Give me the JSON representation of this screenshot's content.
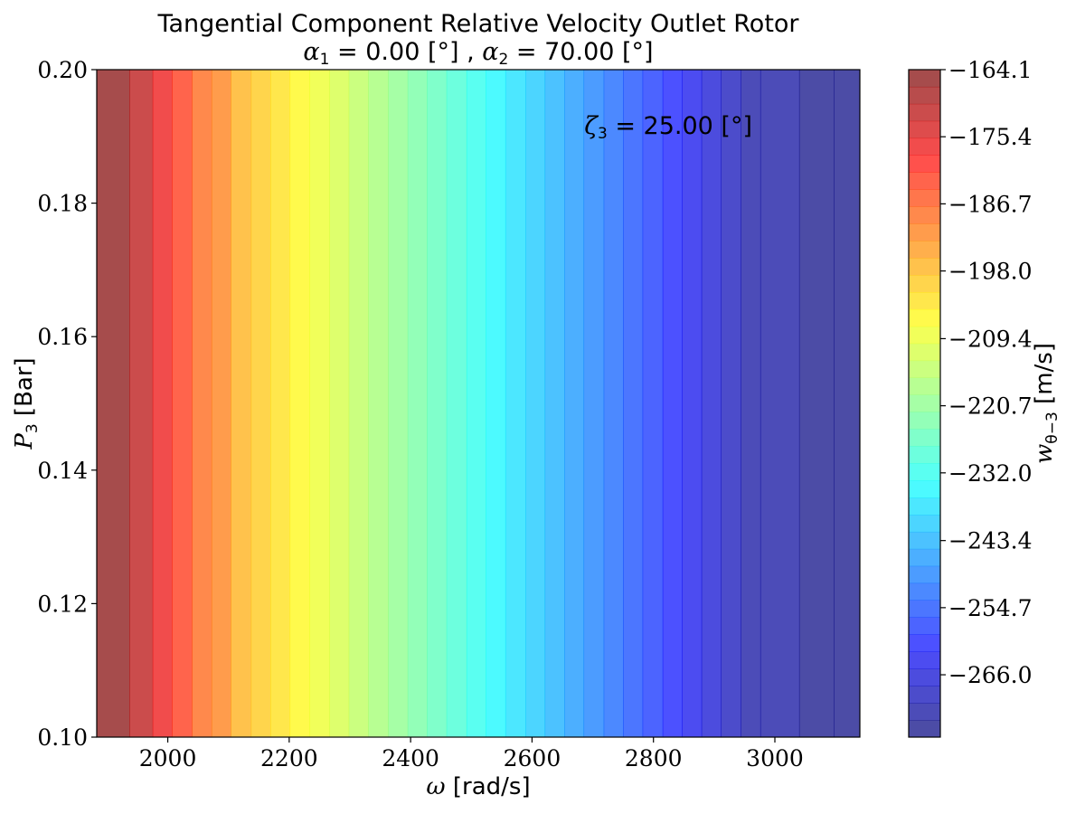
{
  "chart_data": {
    "type": "heatmap",
    "subtype": "filled-contour",
    "title": "Tangential Component Relative Velocity Outlet Rotor",
    "subtitle": {
      "alpha1_symbol": "α",
      "alpha1_sub": "1",
      "alpha1_text": " = 0.00 [°] , ",
      "alpha2_symbol": "α",
      "alpha2_sub": "2",
      "alpha2_text": " = 70.00 [°]"
    },
    "xlabel": {
      "symbol": "ω",
      "text": " [rad/s]"
    },
    "ylabel": {
      "symbol": "P",
      "sub": "3",
      "text": " [Bar]"
    },
    "colorbar_label": {
      "symbol": "w",
      "sub": "θ−3",
      "text": " [m/s]"
    },
    "annotation": {
      "symbol": "ζ",
      "sub": "3",
      "text": " = 25.00 [°]"
    },
    "xlim": [
      1883,
      3140
    ],
    "ylim": [
      0.1,
      0.2
    ],
    "xticks": [
      2000,
      2200,
      2400,
      2600,
      2800,
      3000
    ],
    "yticks": [
      "0.10",
      "0.12",
      "0.14",
      "0.16",
      "0.18",
      "0.20"
    ],
    "colorbar_ticks": [
      "−164.1",
      "−175.4",
      "−186.7",
      "−198.0",
      "−209.4",
      "−220.7",
      "−232.0",
      "−243.4",
      "−254.7",
      "−266.0"
    ],
    "colorbar_range": [
      -276.5,
      -164.1
    ],
    "colorbar_levels": 39,
    "colormap": "jet",
    "alpha": 0.7,
    "bands": [
      {
        "x0": 1883,
        "x1": 1937,
        "level": 0
      },
      {
        "x0": 1937,
        "x1": 1975,
        "level": 2
      },
      {
        "x0": 1975,
        "x1": 2007,
        "level": 4
      },
      {
        "x0": 2007,
        "x1": 2040,
        "level": 6
      },
      {
        "x0": 2040,
        "x1": 2072,
        "level": 8
      },
      {
        "x0": 2072,
        "x1": 2104,
        "level": 9
      },
      {
        "x0": 2104,
        "x1": 2137,
        "level": 11
      },
      {
        "x0": 2137,
        "x1": 2169,
        "level": 12
      },
      {
        "x0": 2169,
        "x1": 2201,
        "level": 13
      },
      {
        "x0": 2201,
        "x1": 2233,
        "level": 14
      },
      {
        "x0": 2233,
        "x1": 2266,
        "level": 15
      },
      {
        "x0": 2266,
        "x1": 2298,
        "level": 16
      },
      {
        "x0": 2298,
        "x1": 2330,
        "level": 17
      },
      {
        "x0": 2330,
        "x1": 2363,
        "level": 18
      },
      {
        "x0": 2363,
        "x1": 2395,
        "level": 19
      },
      {
        "x0": 2395,
        "x1": 2427,
        "level": 20
      },
      {
        "x0": 2427,
        "x1": 2459,
        "level": 21
      },
      {
        "x0": 2459,
        "x1": 2492,
        "level": 22
      },
      {
        "x0": 2492,
        "x1": 2524,
        "level": 23
      },
      {
        "x0": 2524,
        "x1": 2556,
        "level": 24
      },
      {
        "x0": 2556,
        "x1": 2589,
        "level": 25
      },
      {
        "x0": 2589,
        "x1": 2621,
        "level": 26
      },
      {
        "x0": 2621,
        "x1": 2653,
        "level": 27
      },
      {
        "x0": 2653,
        "x1": 2685,
        "level": 28
      },
      {
        "x0": 2685,
        "x1": 2718,
        "level": 29
      },
      {
        "x0": 2718,
        "x1": 2750,
        "level": 30
      },
      {
        "x0": 2750,
        "x1": 2782,
        "level": 31
      },
      {
        "x0": 2782,
        "x1": 2815,
        "level": 32
      },
      {
        "x0": 2815,
        "x1": 2847,
        "level": 33
      },
      {
        "x0": 2847,
        "x1": 2879,
        "level": 34
      },
      {
        "x0": 2879,
        "x1": 2911,
        "level": 35
      },
      {
        "x0": 2911,
        "x1": 2944,
        "level": 36
      },
      {
        "x0": 2944,
        "x1": 2976,
        "level": 37
      },
      {
        "x0": 2976,
        "x1": 3040,
        "level": 37
      },
      {
        "x0": 3040,
        "x1": 3097,
        "level": 38
      },
      {
        "x0": 3097,
        "x1": 3140,
        "level": 38
      }
    ]
  }
}
